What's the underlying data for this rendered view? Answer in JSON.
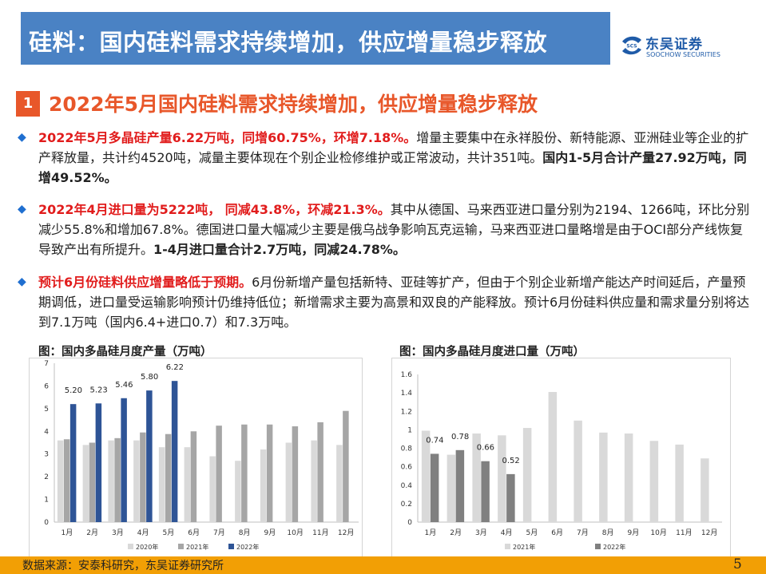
{
  "header": {
    "title": "硅料：国内硅料需求持续增加，供应增量稳步释放",
    "logo_cn": "东吴证券",
    "logo_en": "SOOCHOW SECURITIES",
    "logo_mark": "SCS"
  },
  "section": {
    "number": "1",
    "title": "2022年5月国内硅料需求持续增加，供应增量稳步释放"
  },
  "paragraphs": [
    {
      "red": "2022年5月多晶硅产量6.22万吨，同增60.75%，环增7.18%。",
      "normal": "增量主要集中在永祥股份、新特能源、亚洲硅业等企业的扩产释放量，共计约4520吨，减量主要体现在个别企业检修维护或正常波动，共计351吨。",
      "bold": "国内1-5月合计产量27.92万吨，同增49.52%。"
    },
    {
      "red": "2022年4月进口量为5222吨， 同减43.8%，环减21.3%。",
      "normal": "其中从德国、马来西亚进口量分别为2194、1266吨，环比分别减少55.8%和增加67.8%。德国进口量大幅减少主要是俄乌战争影响瓦克运输，马来西亚进口量略增是由于OCI部分产线恢复导致产出有所提升。",
      "bold": "1-4月进口量合计2.7万吨，同减24.78%。"
    },
    {
      "red": "预计6月份硅料供应增量略低于预期。",
      "normal": "6月份新增产量包括新特、亚硅等扩产，但由于个别企业新增产能达产时间延后，产量预期调低，进口量受运输影响预计仍维持低位；新增需求主要为高景和双良的产能释放。预计6月份硅料供应量和需求量分别将达到7.1万吨（国内6.4+进口0.7）和7.3万吨。",
      "bold": ""
    }
  ],
  "chart_data": [
    {
      "type": "bar",
      "title": "图：国内多晶硅月度产量（万吨）",
      "categories": [
        "1月",
        "2月",
        "3月",
        "4月",
        "5月",
        "6月",
        "7月",
        "8月",
        "9月",
        "10月",
        "11月",
        "12月"
      ],
      "ylim": [
        0,
        7
      ],
      "yticks": [
        "0",
        "1",
        "2",
        "3",
        "4",
        "5",
        "6",
        "7"
      ],
      "series": [
        {
          "name": "2020年",
          "color": "#d9d9d9",
          "values": [
            3.6,
            3.4,
            3.6,
            3.6,
            3.3,
            3.3,
            2.9,
            2.7,
            3.2,
            3.5,
            3.6,
            3.4
          ]
        },
        {
          "name": "2021年",
          "color": "#a6a6a6",
          "values": [
            3.65,
            3.5,
            3.7,
            3.95,
            3.88,
            4.0,
            4.25,
            4.3,
            4.3,
            4.22,
            4.4,
            4.9
          ]
        },
        {
          "name": "2022年",
          "color": "#2e5496",
          "values": [
            5.2,
            5.23,
            5.46,
            5.8,
            6.22,
            null,
            null,
            null,
            null,
            null,
            null,
            null
          ]
        }
      ],
      "data_labels": [
        "5.20",
        "5.23",
        "5.46",
        "5.80",
        "6.22"
      ]
    },
    {
      "type": "bar",
      "title": "图：国内多晶硅月度进口量（万吨）",
      "categories": [
        "1月",
        "2月",
        "3月",
        "4月",
        "5月",
        "6月",
        "7月",
        "8月",
        "9月",
        "10月",
        "11月",
        "12月"
      ],
      "ylim": [
        0,
        1.6
      ],
      "yticks": [
        "0",
        "0.2",
        "0.4",
        "0.6",
        "0.8",
        "1",
        "1.2",
        "1.4",
        "1.6"
      ],
      "series": [
        {
          "name": "2021年",
          "color": "#d9d9d9",
          "values": [
            0.99,
            0.73,
            0.96,
            0.94,
            1.02,
            1.41,
            1.1,
            0.97,
            0.96,
            0.88,
            0.84,
            0.69
          ]
        },
        {
          "name": "2022年",
          "color": "#808080",
          "values": [
            0.74,
            0.78,
            0.66,
            0.52,
            null,
            null,
            null,
            null,
            null,
            null,
            null,
            null
          ]
        }
      ],
      "data_labels": [
        "0.74",
        "0.78",
        "0.66",
        "0.52"
      ]
    }
  ],
  "footer": {
    "source": "数据来源：安泰科研究，东吴证券研究所",
    "page": "5"
  }
}
